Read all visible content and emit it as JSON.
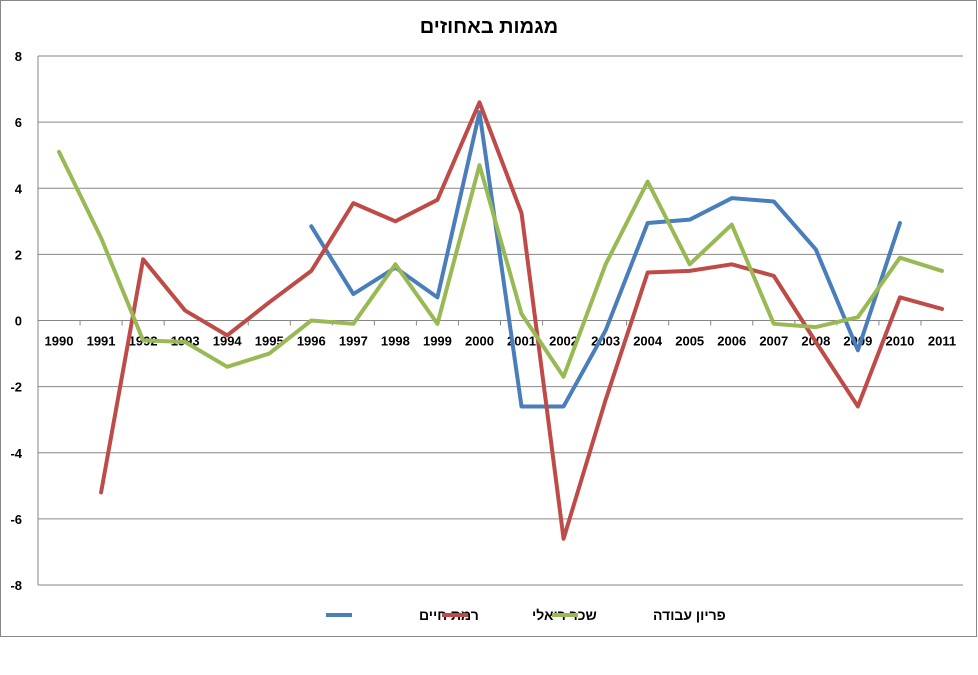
{
  "chart_data": {
    "type": "line",
    "title": "מגמות באחוזים",
    "xlabel": "",
    "ylabel": "",
    "categories": [
      "1990",
      "1991",
      "1992",
      "1993",
      "1994",
      "1995",
      "1996",
      "1997",
      "1998",
      "1999",
      "2000",
      "2001",
      "2002",
      "2003",
      "2004",
      "2005",
      "2006",
      "2007",
      "2008",
      "2009",
      "2010",
      "2011"
    ],
    "ylim": [
      -8,
      8
    ],
    "yticks": [
      8,
      6,
      4,
      2,
      0,
      -2,
      -4,
      -6,
      -8
    ],
    "grid": true,
    "legend_position": "bottom",
    "series": [
      {
        "name": "רמת חיים",
        "color": "#4a7ebb",
        "values": [
          null,
          null,
          null,
          null,
          null,
          null,
          2.85,
          0.8,
          1.6,
          0.7,
          6.3,
          -2.6,
          -2.6,
          -0.3,
          2.95,
          3.05,
          3.7,
          3.6,
          2.15,
          -0.9,
          2.95,
          null
        ]
      },
      {
        "name": "שכר ריאלי",
        "color": "#be4b48",
        "values": [
          null,
          -5.2,
          1.85,
          0.3,
          -0.45,
          0.55,
          1.5,
          3.55,
          3.0,
          3.65,
          6.6,
          3.25,
          -6.6,
          -2.4,
          1.45,
          1.5,
          1.7,
          1.35,
          -0.65,
          -2.6,
          0.7,
          0.35
        ]
      },
      {
        "name": "פריון עבודה",
        "color": "#98b954",
        "values": [
          5.1,
          2.5,
          -0.6,
          -0.65,
          -1.4,
          -1.0,
          0.0,
          -0.1,
          1.7,
          -0.1,
          4.7,
          0.2,
          -1.7,
          1.7,
          4.2,
          1.7,
          2.9,
          -0.1,
          -0.2,
          0.1,
          1.9,
          1.5
        ]
      }
    ],
    "legend_order": [
      0,
      1,
      2
    ]
  }
}
